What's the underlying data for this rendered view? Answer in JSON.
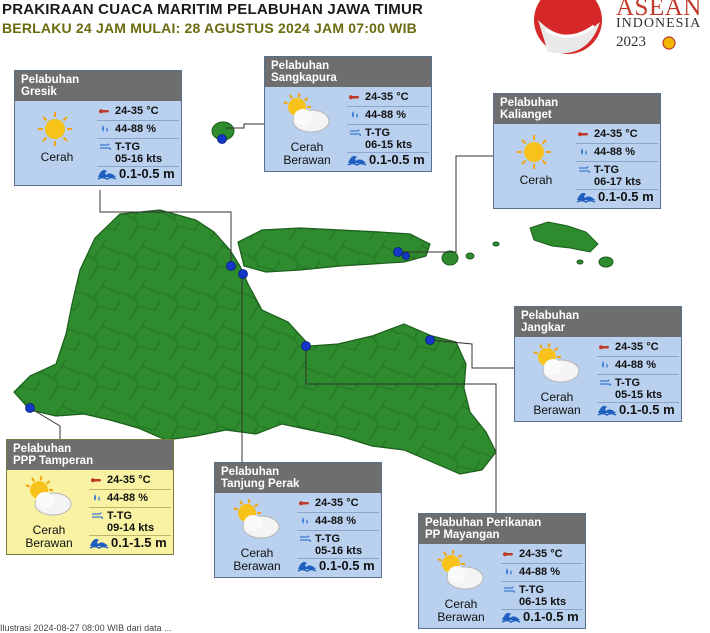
{
  "header": {
    "title": "PRAKIRAAN CUACA MARITIM PELABUHAN JAWA TIMUR",
    "subtitle": "BERLAKU 24 JAM MULAI: 28 AGUSTUS 2024 JAM 07:00 WIB"
  },
  "logo": {
    "word": "ASEAN",
    "country": "INDONESIA",
    "year": "2023"
  },
  "colors": {
    "land": "#2e8b2e",
    "card_blue": "#b9d1ee",
    "card_yellow": "#f8f2a2",
    "header_gray": "#6e6e6e",
    "marker": "#1537c9"
  },
  "footer": "Ilustrasi 2024-08-27 08:00 WIB dari data ...",
  "ports": [
    {
      "name1": "Pelabuhan",
      "name2": "Gresik",
      "weather": "Cerah",
      "weather2": "",
      "icon": "sun-icon",
      "temp": "24-35 °C",
      "humidity": "44-88 %",
      "wind_dir": "T-TG",
      "wind_speed": "05-16 kts",
      "wave": "0.1-0.5 m"
    },
    {
      "name1": "Pelabuhan",
      "name2": "Sangkapura",
      "weather": "Cerah",
      "weather2": "Berawan",
      "icon": "partly-cloudy-icon",
      "temp": "24-35 °C",
      "humidity": "44-88 %",
      "wind_dir": "T-TG",
      "wind_speed": "06-15 kts",
      "wave": "0.1-0.5 m"
    },
    {
      "name1": "Pelabuhan",
      "name2": "Kalianget",
      "weather": "Cerah",
      "weather2": "",
      "icon": "sun-icon",
      "temp": "24-35 °C",
      "humidity": "44-88 %",
      "wind_dir": "T-TG",
      "wind_speed": "06-17 kts",
      "wave": "0.1-0.5 m"
    },
    {
      "name1": "Pelabuhan",
      "name2": "Jangkar",
      "weather": "Cerah",
      "weather2": "Berawan",
      "icon": "partly-cloudy-icon",
      "temp": "24-35 °C",
      "humidity": "44-88 %",
      "wind_dir": "T-TG",
      "wind_speed": "05-15 kts",
      "wave": "0.1-0.5 m"
    },
    {
      "name1": "Pelabuhan",
      "name2": "PPP Tamperan",
      "weather": "Cerah",
      "weather2": "Berawan",
      "icon": "partly-cloudy-icon",
      "temp": "24-35 °C",
      "humidity": "44-88 %",
      "wind_dir": "T-TG",
      "wind_speed": "09-14 kts",
      "wave": "0.1-1.5 m"
    },
    {
      "name1": "Pelabuhan",
      "name2": "Tanjung Perak",
      "weather": "Cerah",
      "weather2": "Berawan",
      "icon": "partly-cloudy-icon",
      "temp": "24-35 °C",
      "humidity": "44-88 %",
      "wind_dir": "T-TG",
      "wind_speed": "05-16 kts",
      "wave": "0.1-0.5 m"
    },
    {
      "name1": "Pelabuhan Perikanan",
      "name2": "PP Mayangan",
      "weather": "Cerah",
      "weather2": "Berawan",
      "icon": "partly-cloudy-icon",
      "temp": "24-35 °C",
      "humidity": "44-88 %",
      "wind_dir": "T-TG",
      "wind_speed": "06-15 kts",
      "wave": "0.1-0.5 m"
    }
  ]
}
